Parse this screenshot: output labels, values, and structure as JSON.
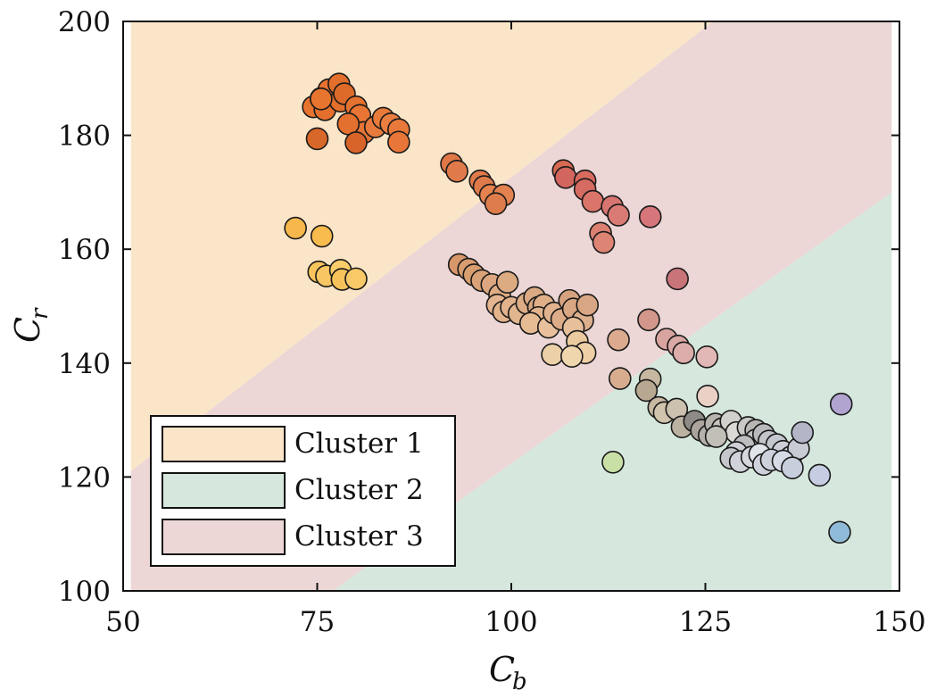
{
  "chart_data": {
    "type": "scatter",
    "title": "",
    "xlabel": "C",
    "xlabel_sub": "b",
    "ylabel": "C",
    "ylabel_sub": "r",
    "xlim": [
      50,
      150
    ],
    "ylim": [
      100,
      200
    ],
    "xticks": [
      50,
      75,
      100,
      125,
      150
    ],
    "yticks": [
      100,
      120,
      140,
      160,
      180,
      200
    ],
    "xtick_labels": [
      "50",
      "75",
      "100",
      "125",
      "150"
    ],
    "ytick_labels": [
      "100",
      "120",
      "140",
      "160",
      "180",
      "200"
    ],
    "legend_position": "bottom-left",
    "regions": [
      {
        "name": "Cluster 1",
        "color": "#fbe5c8",
        "polygon": [
          [
            51,
            200
          ],
          [
            51,
            121
          ],
          [
            126,
            200
          ]
        ]
      },
      {
        "name": "Cluster 2",
        "color": "#d6e8dd",
        "polygon": [
          [
            77,
            100
          ],
          [
            149,
            100
          ],
          [
            149,
            170
          ]
        ]
      },
      {
        "name": "Cluster 3",
        "color": "#ecd6d6",
        "polygon": [
          [
            51,
            121
          ],
          [
            51,
            100
          ],
          [
            77,
            100
          ],
          [
            149,
            170
          ],
          [
            149,
            200
          ],
          [
            126,
            200
          ]
        ]
      }
    ],
    "legend": [
      {
        "label": "Cluster 1",
        "color": "#fbe5c8"
      },
      {
        "label": "Cluster 2",
        "color": "#d6e8dd"
      },
      {
        "label": "Cluster 3",
        "color": "#ecd6d6"
      }
    ],
    "points": [
      {
        "x": 74.5,
        "y": 185,
        "color": "#e8732f"
      },
      {
        "x": 75.5,
        "y": 186.5,
        "color": "#e8732f"
      },
      {
        "x": 76.5,
        "y": 188,
        "color": "#e87230"
      },
      {
        "x": 77.8,
        "y": 189,
        "color": "#e26f2c"
      },
      {
        "x": 76,
        "y": 184.5,
        "color": "#e46f2d"
      },
      {
        "x": 78,
        "y": 186,
        "color": "#e26f2c"
      },
      {
        "x": 78.5,
        "y": 187.3,
        "color": "#dd6a28"
      },
      {
        "x": 80,
        "y": 185,
        "color": "#e5722f"
      },
      {
        "x": 80.5,
        "y": 183.5,
        "color": "#e87534"
      },
      {
        "x": 81,
        "y": 180.5,
        "color": "#e57436"
      },
      {
        "x": 79,
        "y": 182,
        "color": "#e4702f"
      },
      {
        "x": 82.5,
        "y": 181.5,
        "color": "#e77a3c"
      },
      {
        "x": 83.5,
        "y": 183,
        "color": "#e87a3a"
      },
      {
        "x": 84.5,
        "y": 182,
        "color": "#ea7e40"
      },
      {
        "x": 85.5,
        "y": 181,
        "color": "#e9793a"
      },
      {
        "x": 85.5,
        "y": 178.8,
        "color": "#e77638"
      },
      {
        "x": 80,
        "y": 178.7,
        "color": "#d8642a"
      },
      {
        "x": 75,
        "y": 179.4,
        "color": "#d8682a"
      },
      {
        "x": 75.5,
        "y": 186.4,
        "color": "#e8752f"
      },
      {
        "x": 72.2,
        "y": 163.7,
        "color": "#f6b84c"
      },
      {
        "x": 75.6,
        "y": 162.3,
        "color": "#f7bb4e"
      },
      {
        "x": 75.2,
        "y": 156,
        "color": "#f8c45c"
      },
      {
        "x": 76.2,
        "y": 155.3,
        "color": "#f8c763"
      },
      {
        "x": 78,
        "y": 156.3,
        "color": "#fbcc6a"
      },
      {
        "x": 78.2,
        "y": 154.7,
        "color": "#f7c25a"
      },
      {
        "x": 80,
        "y": 154.8,
        "color": "#f9c968"
      },
      {
        "x": 92.3,
        "y": 175,
        "color": "#e07848"
      },
      {
        "x": 93,
        "y": 173.7,
        "color": "#e17a4a"
      },
      {
        "x": 96,
        "y": 172,
        "color": "#e07a4a"
      },
      {
        "x": 96.5,
        "y": 171,
        "color": "#df7b4b"
      },
      {
        "x": 97.3,
        "y": 169.5,
        "color": "#e5824f"
      },
      {
        "x": 99,
        "y": 169.5,
        "color": "#e38150"
      },
      {
        "x": 98,
        "y": 168,
        "color": "#df7c4c"
      },
      {
        "x": 106.7,
        "y": 173.8,
        "color": "#d66a52"
      },
      {
        "x": 107,
        "y": 172.6,
        "color": "#d2655d"
      },
      {
        "x": 109.5,
        "y": 172,
        "color": "#d86a5e"
      },
      {
        "x": 109.5,
        "y": 170.5,
        "color": "#d66b62"
      },
      {
        "x": 110.5,
        "y": 168.4,
        "color": "#db756a"
      },
      {
        "x": 113,
        "y": 167.5,
        "color": "#d87570"
      },
      {
        "x": 113.8,
        "y": 166,
        "color": "#d97b74"
      },
      {
        "x": 111.5,
        "y": 162.8,
        "color": "#dc8072"
      },
      {
        "x": 111.9,
        "y": 161.2,
        "color": "#dd8474"
      },
      {
        "x": 117.9,
        "y": 165.7,
        "color": "#d6767b"
      },
      {
        "x": 121.4,
        "y": 154.8,
        "color": "#c97479"
      },
      {
        "x": 93.3,
        "y": 157.3,
        "color": "#d8976a"
      },
      {
        "x": 94.5,
        "y": 156.5,
        "color": "#d89c70"
      },
      {
        "x": 95.2,
        "y": 155.5,
        "color": "#d99e6f"
      },
      {
        "x": 96.2,
        "y": 154.5,
        "color": "#daa278"
      },
      {
        "x": 97.5,
        "y": 153.8,
        "color": "#dca780"
      },
      {
        "x": 98.5,
        "y": 152,
        "color": "#e0ac84"
      },
      {
        "x": 99.5,
        "y": 154.2,
        "color": "#ddab82"
      },
      {
        "x": 98.2,
        "y": 150.2,
        "color": "#e4b590"
      },
      {
        "x": 99,
        "y": 149,
        "color": "#e4b48d"
      },
      {
        "x": 100,
        "y": 149.8,
        "color": "#e2b28c"
      },
      {
        "x": 101,
        "y": 148.7,
        "color": "#e2b68e"
      },
      {
        "x": 102,
        "y": 150.5,
        "color": "#ddad86"
      },
      {
        "x": 103,
        "y": 151.5,
        "color": "#dbaa84"
      },
      {
        "x": 103.5,
        "y": 149.8,
        "color": "#d9a882"
      },
      {
        "x": 104.2,
        "y": 150.2,
        "color": "#dfaf88"
      },
      {
        "x": 103.5,
        "y": 148,
        "color": "#e2b48e"
      },
      {
        "x": 102.5,
        "y": 147,
        "color": "#e5bb94"
      },
      {
        "x": 104.8,
        "y": 146.3,
        "color": "#e8c09b"
      },
      {
        "x": 105.5,
        "y": 148.8,
        "color": "#e0b38e"
      },
      {
        "x": 106.5,
        "y": 147.7,
        "color": "#dcab88"
      },
      {
        "x": 107.5,
        "y": 151,
        "color": "#d6a27e"
      },
      {
        "x": 108,
        "y": 149.5,
        "color": "#d8a683"
      },
      {
        "x": 109.2,
        "y": 147.5,
        "color": "#ddb08d"
      },
      {
        "x": 109.8,
        "y": 150.2,
        "color": "#d8a684"
      },
      {
        "x": 108,
        "y": 146.2,
        "color": "#e6bf9b"
      },
      {
        "x": 108.5,
        "y": 143.8,
        "color": "#ecca9f"
      },
      {
        "x": 109.5,
        "y": 141.8,
        "color": "#eecfa6"
      },
      {
        "x": 105.3,
        "y": 141.5,
        "color": "#ecd0a8"
      },
      {
        "x": 107.8,
        "y": 141.2,
        "color": "#f0d6ad"
      },
      {
        "x": 113.8,
        "y": 144.1,
        "color": "#dcab8f"
      },
      {
        "x": 114,
        "y": 137.3,
        "color": "#d8ad8f"
      },
      {
        "x": 117.7,
        "y": 147.6,
        "color": "#d2968a"
      },
      {
        "x": 120,
        "y": 144.2,
        "color": "#d8a4a0"
      },
      {
        "x": 121.5,
        "y": 143,
        "color": "#daa8a5"
      },
      {
        "x": 122.2,
        "y": 141.8,
        "color": "#dcadaa"
      },
      {
        "x": 125.2,
        "y": 141.1,
        "color": "#e2b8b6"
      },
      {
        "x": 125.3,
        "y": 134.2,
        "color": "#ebd0c6"
      },
      {
        "x": 117.9,
        "y": 137.2,
        "color": "#c6b8a0"
      },
      {
        "x": 117.4,
        "y": 135.2,
        "color": "#b9a891"
      },
      {
        "x": 119,
        "y": 132.2,
        "color": "#c7b9a2"
      },
      {
        "x": 119.7,
        "y": 131.3,
        "color": "#d1c4ac"
      },
      {
        "x": 121.3,
        "y": 131.9,
        "color": "#ccc0ae"
      },
      {
        "x": 122,
        "y": 128.8,
        "color": "#bcb2a2"
      },
      {
        "x": 123.6,
        "y": 129.8,
        "color": "#8e8b86"
      },
      {
        "x": 124.5,
        "y": 128.2,
        "color": "#aaa49c"
      },
      {
        "x": 125.5,
        "y": 127.3,
        "color": "#b4b1ab"
      },
      {
        "x": 126.3,
        "y": 129.3,
        "color": "#b8b4ad"
      },
      {
        "x": 127.2,
        "y": 128.5,
        "color": "#c6c3bd"
      },
      {
        "x": 128.3,
        "y": 129.8,
        "color": "#d2d0cc"
      },
      {
        "x": 129,
        "y": 127.8,
        "color": "#dad9d6"
      },
      {
        "x": 130.5,
        "y": 128.7,
        "color": "#c9c8c6"
      },
      {
        "x": 131.5,
        "y": 128.2,
        "color": "#b8b7b5"
      },
      {
        "x": 131.5,
        "y": 126.5,
        "color": "#c4c4c4"
      },
      {
        "x": 132.5,
        "y": 127.5,
        "color": "#b9b9bd"
      },
      {
        "x": 133.2,
        "y": 126.3,
        "color": "#c3c4ca"
      },
      {
        "x": 134.2,
        "y": 125.7,
        "color": "#c5c7cf"
      },
      {
        "x": 135,
        "y": 124.5,
        "color": "#cdcfd8"
      },
      {
        "x": 136,
        "y": 123.5,
        "color": "#d3d6e0"
      },
      {
        "x": 137,
        "y": 125,
        "color": "#c8cad4"
      },
      {
        "x": 137.5,
        "y": 127.8,
        "color": "#b4b6c8"
      },
      {
        "x": 130,
        "y": 125.5,
        "color": "#bdbdbf"
      },
      {
        "x": 129,
        "y": 124.3,
        "color": "#cfd0d5"
      },
      {
        "x": 128.3,
        "y": 123.3,
        "color": "#c4c6cc"
      },
      {
        "x": 129.5,
        "y": 122.7,
        "color": "#d1d3db"
      },
      {
        "x": 131,
        "y": 123.5,
        "color": "#d6d8df"
      },
      {
        "x": 132,
        "y": 124,
        "color": "#e2e4ec"
      },
      {
        "x": 132.5,
        "y": 122.2,
        "color": "#cfd2dc"
      },
      {
        "x": 133.5,
        "y": 123,
        "color": "#cdd1dc"
      },
      {
        "x": 135,
        "y": 122.8,
        "color": "#d6dbe6"
      },
      {
        "x": 136.2,
        "y": 121.6,
        "color": "#c8cfdc"
      },
      {
        "x": 126.4,
        "y": 127.1,
        "color": "#c2bfb8"
      },
      {
        "x": 139.7,
        "y": 120.3,
        "color": "#c6cde2"
      },
      {
        "x": 142.5,
        "y": 132.8,
        "color": "#b2a4d0"
      },
      {
        "x": 142.3,
        "y": 110.3,
        "color": "#8fbbd8"
      },
      {
        "x": 113.1,
        "y": 122.6,
        "color": "#c8dfa6"
      }
    ]
  }
}
